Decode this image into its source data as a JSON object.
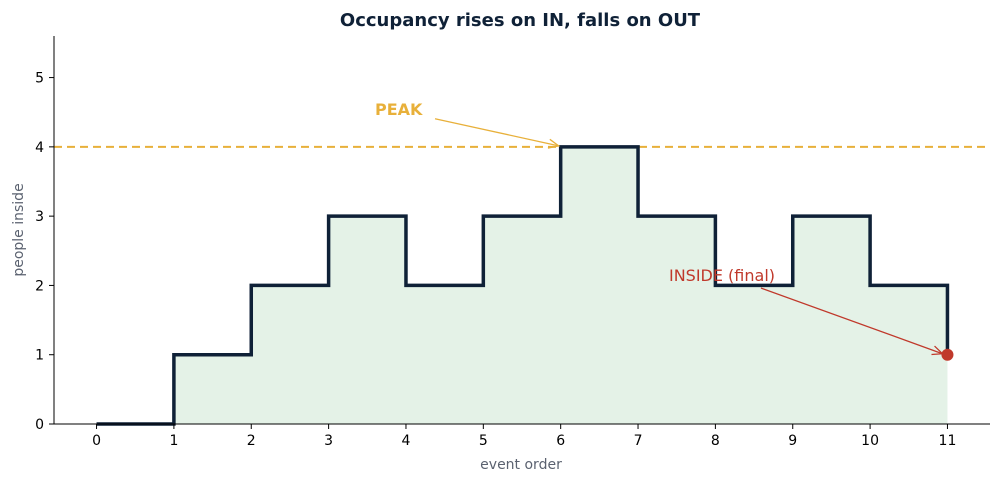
{
  "chart_data": {
    "type": "line",
    "step": "post",
    "title": "Occupancy rises on IN, falls on OUT",
    "xlabel": "event order",
    "ylabel": "people inside",
    "x": [
      0,
      1,
      2,
      3,
      4,
      5,
      6,
      7,
      8,
      9,
      10,
      11
    ],
    "values": [
      0,
      1,
      2,
      3,
      2,
      3,
      4,
      3,
      2,
      3,
      2,
      1
    ],
    "xlim": [
      -0.55,
      11.55
    ],
    "ylim": [
      0,
      5.6
    ],
    "xticks": [
      "0",
      "1",
      "2",
      "3",
      "4",
      "5",
      "6",
      "7",
      "8",
      "9",
      "10",
      "11"
    ],
    "yticks": [
      "0",
      "1",
      "2",
      "3",
      "4",
      "5"
    ],
    "fill_under": true,
    "peak_line": {
      "y": 4
    },
    "annotations": {
      "peak": {
        "text": "PEAK",
        "target": [
          6,
          4
        ],
        "text_at": [
          3.6,
          4.55
        ]
      },
      "final": {
        "text": "INSIDE (final)",
        "target": [
          11,
          1
        ],
        "text_at": [
          7.4,
          2.15
        ]
      }
    },
    "grid": false,
    "legend": "none"
  },
  "colors": {
    "line": "#0f2137",
    "fill": "#e4f2e7",
    "peak": "#e8b03a",
    "final": "#c0392b",
    "title": "#0f2137",
    "axis_label": "#5b6270",
    "tick": "#000000",
    "spine": "#000000"
  }
}
